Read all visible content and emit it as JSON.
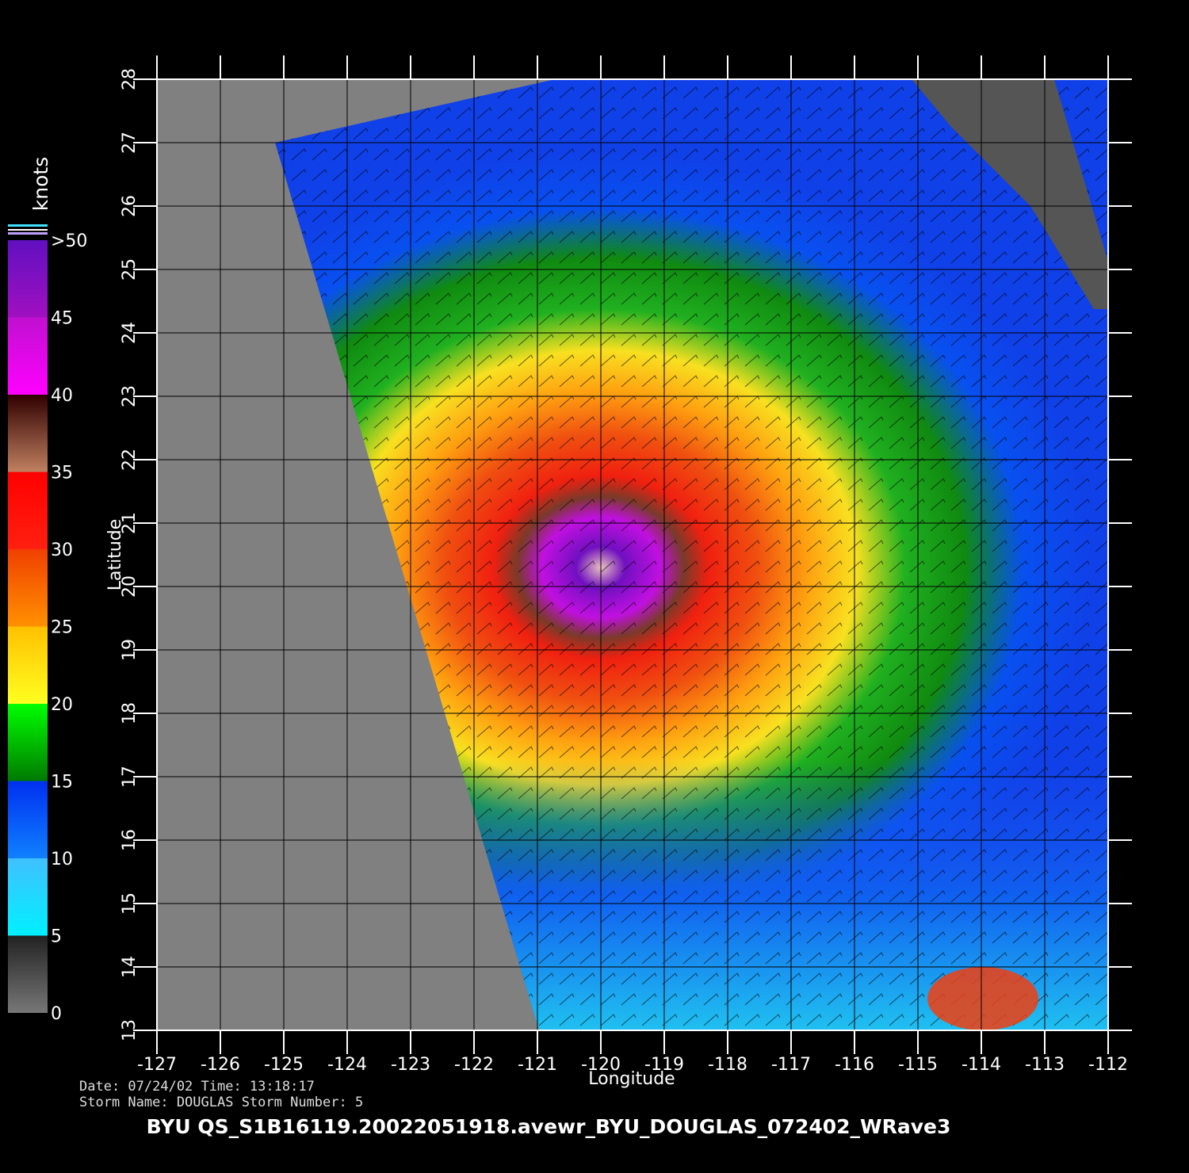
{
  "title": "BYU  QS_S1B16119.20022051918.avewr_BYU_DOUGLAS_072402_WRave3",
  "info": [
    "Date: 07/24/02   Time: 13:18:17",
    "Storm  Name:  DOUGLAS    Storm  Number:  5"
  ],
  "x_axis": {
    "label": "Longitude",
    "ticks": [
      -127,
      -126,
      -125,
      -124,
      -123,
      -122,
      -121,
      -120,
      -119,
      -118,
      -117,
      -116,
      -115,
      -114,
      -113,
      -112
    ]
  },
  "y_axis": {
    "label": "Latitude",
    "ticks": [
      13,
      14,
      15,
      16,
      17,
      18,
      19,
      20,
      21,
      22,
      23,
      24,
      25,
      26,
      27,
      28
    ]
  },
  "colorbar": {
    "title": "knots",
    "ticks": [
      0,
      5,
      10,
      15,
      20,
      25,
      30,
      35,
      40,
      45,
      {
        "value": 50,
        "label": ">50"
      }
    ]
  }
}
